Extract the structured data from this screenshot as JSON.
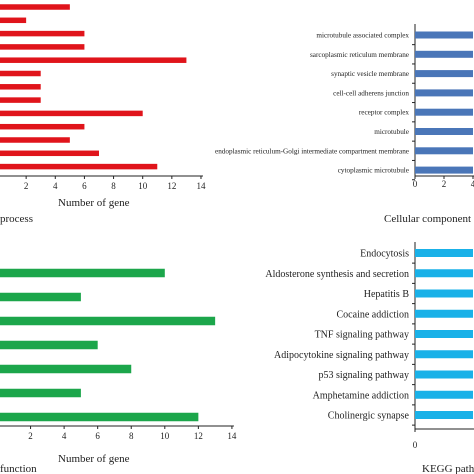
{
  "chart_data": [
    {
      "type": "bar",
      "orientation": "horizontal",
      "color": "#e0141b",
      "values": [
        5,
        2,
        6,
        6,
        13,
        3,
        3,
        3,
        10,
        6,
        5,
        7,
        11
      ],
      "xlim": [
        0,
        14
      ],
      "xticks": [
        2,
        4,
        6,
        8,
        10,
        12,
        14
      ],
      "xlabel": "Number of gene",
      "panel_label": "process"
    },
    {
      "type": "bar",
      "orientation": "horizontal",
      "color": "#4a76b8",
      "categories": [
        "microtubule associated complex",
        "sarcoplasmic reticulum membrane",
        "synaptic vesicle membrane",
        "cell-cell adherens junction",
        "receptor complex",
        "microtubule",
        "endoplasmic reticulum-Golgi intermediate compartment membrane",
        "cytoplasmic microtubule"
      ],
      "values": [
        4,
        4,
        4,
        4,
        4,
        4,
        4,
        4
      ],
      "xlim": [
        0,
        4
      ],
      "xticks": [
        0,
        2,
        4
      ],
      "panel_label": "Cellular component"
    },
    {
      "type": "bar",
      "orientation": "horizontal",
      "color": "#1ca64b",
      "values": [
        10,
        5,
        13,
        6,
        8,
        5,
        12
      ],
      "xlim": [
        0,
        14
      ],
      "xticks": [
        2,
        4,
        6,
        8,
        10,
        12,
        14
      ],
      "xlabel": "Number of gene",
      "panel_label": "function"
    },
    {
      "type": "bar",
      "orientation": "horizontal",
      "color": "#19b1e8",
      "categories": [
        "Endocytosis",
        "Aldosterone synthesis and secretion",
        "Hepatitis B",
        "Cocaine addiction",
        "TNF signaling pathway",
        "Adipocytokine signaling pathway",
        "p53 signaling pathway",
        "Amphetamine addiction",
        "Cholinergic synapse"
      ],
      "values": [
        4,
        4,
        4,
        4,
        4,
        4,
        4,
        4,
        4
      ],
      "xlim": [
        0,
        4
      ],
      "xticks": [
        0
      ],
      "panel_label": "KEGG pathway"
    }
  ]
}
